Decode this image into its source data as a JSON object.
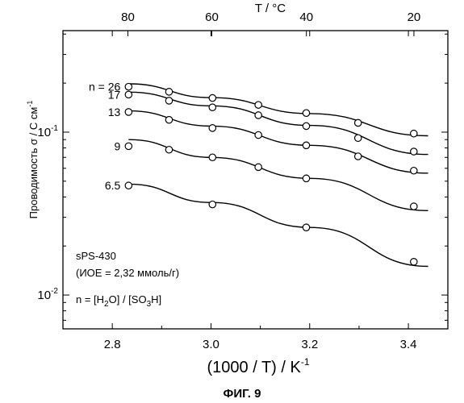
{
  "chart_data": {
    "type": "scatter",
    "x_axis_bottom": {
      "ticks": [
        2.8,
        3.0,
        3.2,
        3.4
      ],
      "tick_labels": [
        "2.8",
        "3.0",
        "3.2",
        "3.4"
      ],
      "range": [
        2.7,
        3.48
      ],
      "label_main": "(1000 / T)  /  K",
      "label_sup": "-1"
    },
    "x_axis_top": {
      "tick_labels": [
        "80",
        "60",
        "40",
        "20"
      ],
      "tick_values_celsius": [
        80,
        60,
        40,
        20
      ],
      "label": "T  / °C"
    },
    "y_axis": {
      "scale": "log",
      "range": [
        0.0062,
        0.42
      ],
      "tick_mantissa": "10",
      "tick_exponents": [
        "-1",
        "-2"
      ],
      "tick_values": [
        0.1,
        0.01
      ],
      "label_main": "Проводимость  σ / С см",
      "label_sup": "-1"
    },
    "series": [
      {
        "name": "n = 26",
        "x": [
          2.833,
          2.915,
          3.003,
          3.096,
          3.193,
          3.298,
          3.411
        ],
        "y": [
          0.19,
          0.177,
          0.162,
          0.147,
          0.131,
          0.114,
          0.098
        ]
      },
      {
        "name": "17",
        "x": [
          2.833,
          2.915,
          3.003,
          3.096,
          3.193,
          3.298,
          3.411
        ],
        "y": [
          0.17,
          0.156,
          0.142,
          0.127,
          0.109,
          0.092,
          0.076
        ]
      },
      {
        "name": "13",
        "x": [
          2.833,
          2.915,
          3.003,
          3.096,
          3.193,
          3.298,
          3.411
        ],
        "y": [
          0.133,
          0.119,
          0.106,
          0.096,
          0.083,
          0.071,
          0.058
        ]
      },
      {
        "name": "9",
        "x": [
          2.833,
          2.915,
          3.003,
          3.096,
          3.193,
          3.411
        ],
        "y": [
          0.082,
          0.078,
          0.07,
          0.061,
          0.052,
          0.035
        ]
      },
      {
        "name": "6.5",
        "x": [
          2.833,
          3.003,
          3.193,
          3.411
        ],
        "y": [
          0.047,
          0.036,
          0.026,
          0.016
        ]
      }
    ],
    "fit_curves": [
      {
        "series": "n = 26",
        "x": [
          2.833,
          3.0,
          3.2,
          3.44
        ],
        "y": [
          0.198,
          0.163,
          0.13,
          0.095
        ]
      },
      {
        "series": "17",
        "x": [
          2.833,
          3.0,
          3.2,
          3.44
        ],
        "y": [
          0.176,
          0.145,
          0.11,
          0.073
        ]
      },
      {
        "series": "13",
        "x": [
          2.833,
          3.0,
          3.2,
          3.44
        ],
        "y": [
          0.135,
          0.109,
          0.083,
          0.056
        ]
      },
      {
        "series": "9",
        "x": [
          2.833,
          3.0,
          3.2,
          3.44
        ],
        "y": [
          0.09,
          0.07,
          0.052,
          0.033
        ]
      },
      {
        "series": "6.5",
        "x": [
          2.833,
          3.0,
          3.2,
          3.44
        ],
        "y": [
          0.048,
          0.037,
          0.026,
          0.015
        ]
      }
    ],
    "annotations": {
      "sample": "sPS-430",
      "ioe": "(ИОЕ = 2,32 ммоль/г)",
      "ratio_prefix": "n = [H",
      "ratio_sub1": "2",
      "ratio_mid": "O] / [SO",
      "ratio_sub2": "3",
      "ratio_suffix": "H]"
    },
    "marker": "open-circle",
    "grid": false
  },
  "caption": "ФИГ. 9"
}
